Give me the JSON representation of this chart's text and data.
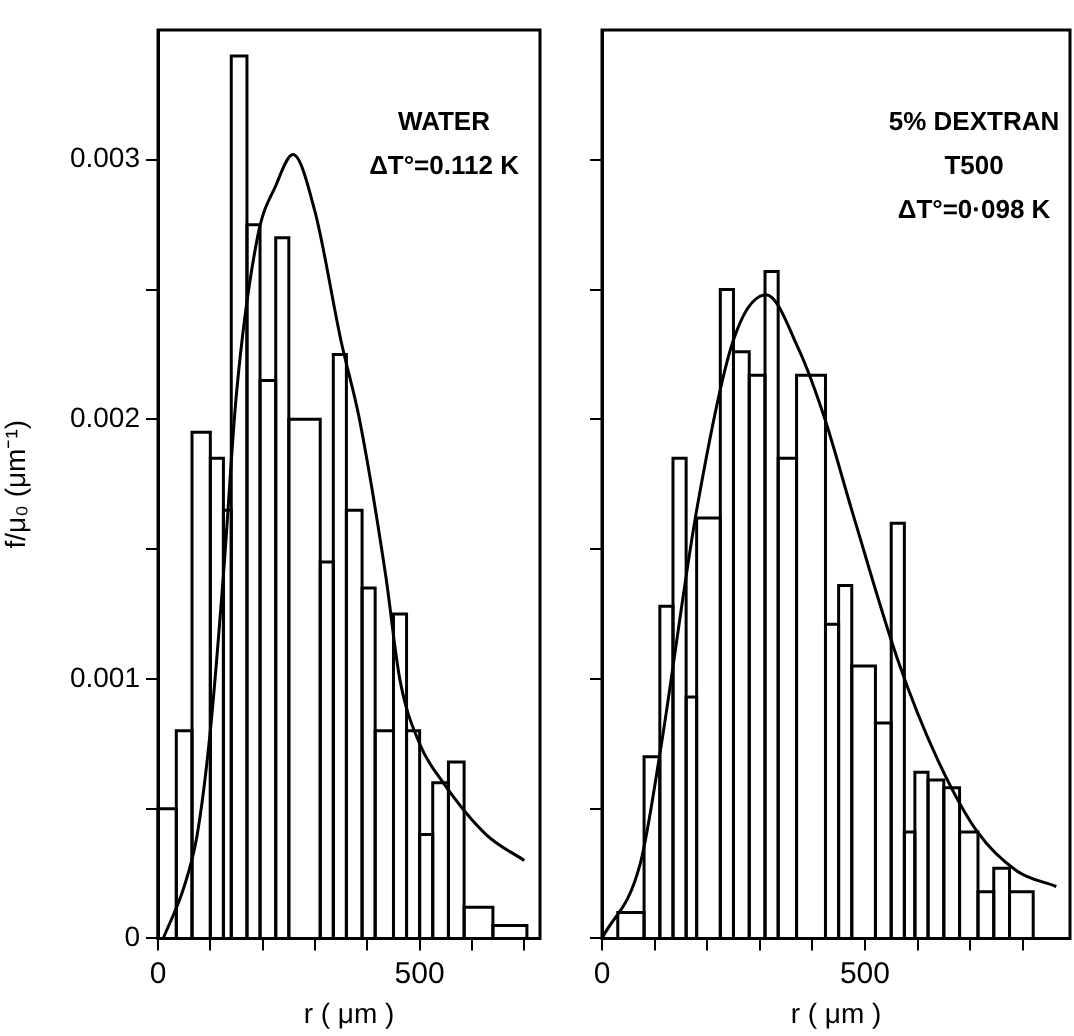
{
  "chart_data": [
    {
      "type": "histogram",
      "xlabel": "r ( μm )",
      "ylabel": "f/μ₀ (μm⁻¹)",
      "annotations": [
        "WATER",
        "ΔT°=0.112 K"
      ],
      "bins": [
        0,
        35,
        65,
        100,
        125,
        140,
        170,
        195,
        225,
        250,
        310,
        335,
        360,
        390,
        415,
        450,
        475,
        500,
        525,
        555,
        585,
        640,
        705
      ],
      "values": [
        0.0005,
        0.0008,
        0.00195,
        0.00185,
        0.00165,
        0.0034,
        0.00275,
        0.00215,
        0.0027,
        0.002,
        0.00145,
        0.00225,
        0.00165,
        0.00135,
        0.0008,
        0.00125,
        0.0008,
        0.0004,
        0.0006,
        0.00068,
        0.00012,
        5e-05
      ],
      "color": "#000000",
      "series": [
        {
          "type": "line",
          "color": "#000000",
          "x": [
            10,
            50,
            75,
            100,
            125,
            150,
            190,
            225,
            258,
            300,
            350,
            385,
            435,
            462,
            500,
            545,
            627,
            700
          ],
          "values": [
            0,
            0.0002,
            0.0004,
            0.0008,
            0.0014,
            0.0021,
            0.0027,
            0.0029,
            0.00302,
            0.0028,
            0.0023,
            0.002,
            0.0014,
            0.001,
            0.00075,
            0.0006,
            0.0004,
            0.0003
          ]
        }
      ],
      "xlim": [
        0,
        730
      ],
      "xticks": [
        {
          "value": 0,
          "label": "0"
        },
        {
          "value": 100,
          "label": null
        },
        {
          "value": 200,
          "label": null
        },
        {
          "value": 300,
          "label": null
        },
        {
          "value": 400,
          "label": null
        },
        {
          "value": 500,
          "label": "500"
        },
        {
          "value": 600,
          "label": null
        },
        {
          "value": 700,
          "label": null
        }
      ],
      "ylim": [
        0,
        0.0035
      ],
      "yticks": [
        0,
        {
          "value": 0.0005,
          "label": null
        },
        0.001,
        {
          "value": 0.0015,
          "label": null
        },
        0.002,
        {
          "value": 0.0025,
          "label": null
        },
        0.003
      ],
      "grid": false,
      "legend": false
    },
    {
      "type": "histogram",
      "xlabel": "r ( μm )",
      "annotations": [
        "5% DEXTRAN",
        "T500",
        "ΔT°=0·098 K"
      ],
      "bins": [
        30,
        80,
        110,
        135,
        160,
        180,
        225,
        250,
        280,
        310,
        335,
        370,
        425,
        450,
        475,
        520,
        550,
        575,
        595,
        620,
        650,
        680,
        715,
        745,
        775,
        820
      ],
      "values": [
        0.0001,
        0.0007,
        0.00128,
        0.00185,
        0.00093,
        0.00162,
        0.0025,
        0.00226,
        0.00217,
        0.00257,
        0.00185,
        0.00217,
        0.00121,
        0.00136,
        0.00105,
        0.00083,
        0.0016,
        0.00041,
        0.00064,
        0.00061,
        0.00058,
        0.00041,
        0.00018,
        0.00027,
        0.00018
      ],
      "color": "#000000",
      "series": [
        {
          "type": "line",
          "color": "#000000",
          "x": [
            0,
            73,
            110,
            180,
            249,
            312,
            374,
            424,
            475,
            563,
            638,
            714,
            789,
            864
          ],
          "values": [
            0,
            0.00029,
            0.00071,
            0.00165,
            0.0023,
            0.00248,
            0.00227,
            0.002,
            0.00165,
            0.00107,
            0.00069,
            0.00041,
            0.00026,
            0.0002
          ]
        }
      ],
      "xlim": [
        0,
        890
      ],
      "xticks": [
        {
          "value": 0,
          "label": "0"
        },
        {
          "value": 100,
          "label": null
        },
        {
          "value": 200,
          "label": null
        },
        {
          "value": 300,
          "label": null
        },
        {
          "value": 400,
          "label": null
        },
        {
          "value": 500,
          "label": "500"
        },
        {
          "value": 600,
          "label": null
        },
        {
          "value": 700,
          "label": null
        },
        {
          "value": 800,
          "label": null
        }
      ],
      "ylim": [
        0,
        0.0035
      ],
      "yticks": [
        {
          "value": 0,
          "label": null
        },
        {
          "value": 0.0005,
          "label": null
        },
        {
          "value": 0.001,
          "label": null
        },
        {
          "value": 0.0015,
          "label": null
        },
        {
          "value": 0.002,
          "label": null
        },
        {
          "value": 0.0025,
          "label": null
        },
        {
          "value": 0.003,
          "label": null
        }
      ],
      "tick_labels": "x",
      "grid": false,
      "legend": false
    }
  ]
}
